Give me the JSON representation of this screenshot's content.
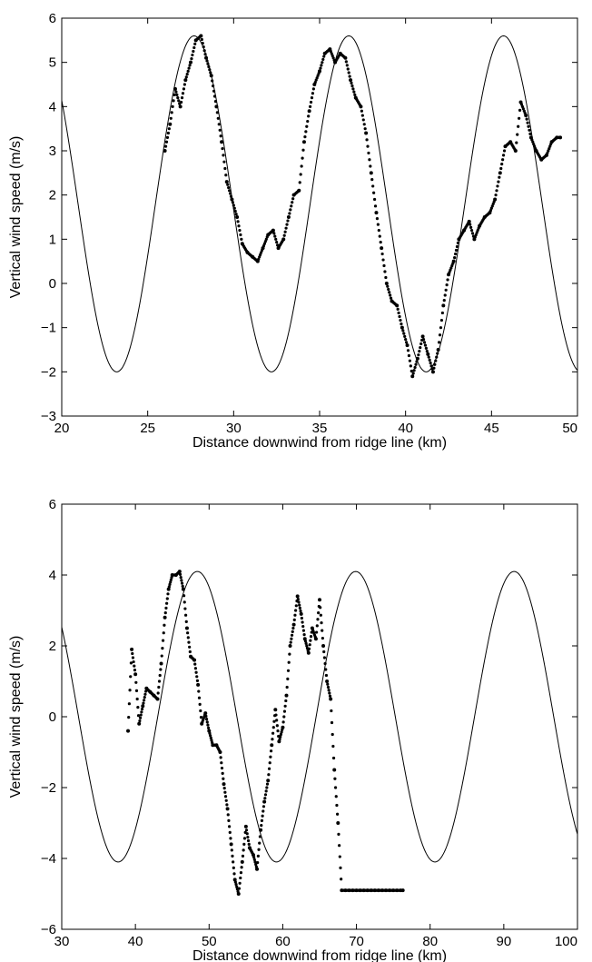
{
  "chart_data": [
    {
      "type": "scatter",
      "xlabel": "Distance downwind from ridge line (km)",
      "ylabel": "Vertical wind speed (m/s)",
      "xlim": [
        20,
        50
      ],
      "ylim": [
        -3,
        6
      ],
      "xticks": [
        20,
        25,
        30,
        35,
        40,
        45,
        50
      ],
      "yticks": [
        -3,
        -2,
        -1,
        0,
        1,
        2,
        3,
        4,
        5,
        6
      ],
      "model_curve": {
        "kind": "sinusoid",
        "amplitude": 3.8,
        "offset": 1.8,
        "wavelength_km": 9.0,
        "peak_x": 27.7
      },
      "series": [
        {
          "style": "points",
          "x": [
            26.0,
            26.3,
            26.6,
            26.9,
            27.2,
            27.5,
            27.8,
            28.1,
            28.4,
            28.7,
            29.0,
            29.3,
            29.6,
            29.9,
            30.2,
            30.5,
            30.8,
            31.1,
            31.4,
            31.7,
            32.0,
            32.3,
            32.6,
            32.9,
            33.2,
            33.5,
            33.8,
            34.1,
            34.4,
            34.7,
            35.0,
            35.3,
            35.6,
            35.9,
            36.2,
            36.5,
            36.8,
            37.1,
            37.4,
            37.7,
            38.0,
            38.3,
            38.6,
            38.9,
            39.2,
            39.5,
            39.8,
            40.1,
            40.4,
            40.7,
            41.0,
            41.3,
            41.6,
            41.9,
            42.2,
            42.5,
            42.8,
            43.1,
            43.4,
            43.7,
            44.0,
            44.3,
            44.6,
            44.9,
            45.2,
            45.5,
            45.8,
            46.1,
            46.4,
            46.7,
            47.0,
            47.3,
            47.6,
            47.9,
            48.2,
            48.5,
            48.8,
            49.0
          ],
          "y": [
            3.0,
            3.6,
            4.4,
            4.0,
            4.6,
            5.0,
            5.5,
            5.6,
            5.1,
            4.7,
            4.0,
            3.2,
            2.3,
            1.9,
            1.5,
            0.9,
            0.7,
            0.6,
            0.5,
            0.8,
            1.1,
            1.2,
            0.8,
            1.0,
            1.5,
            2.0,
            2.1,
            3.2,
            3.9,
            4.5,
            4.8,
            5.2,
            5.3,
            5.0,
            5.2,
            5.1,
            4.6,
            4.2,
            4.0,
            3.4,
            2.5,
            1.6,
            0.8,
            0.0,
            -0.4,
            -0.5,
            -1.0,
            -1.4,
            -2.1,
            -1.7,
            -1.2,
            -1.6,
            -2.0,
            -1.5,
            -0.5,
            0.2,
            0.5,
            1.0,
            1.2,
            1.4,
            1.0,
            1.3,
            1.5,
            1.6,
            1.9,
            2.5,
            3.1,
            3.2,
            3.0,
            4.1,
            3.8,
            3.3,
            3.0,
            2.8,
            2.9,
            3.2,
            3.3,
            3.3
          ]
        }
      ]
    },
    {
      "type": "scatter",
      "xlabel": "Distance downwind from ridge line (km)",
      "ylabel": "Vertical wind speed (m/s)",
      "xlim": [
        30,
        100
      ],
      "ylim": [
        -6,
        6
      ],
      "xticks": [
        30,
        40,
        50,
        60,
        70,
        80,
        90,
        100
      ],
      "yticks": [
        -6,
        -4,
        -2,
        0,
        2,
        4,
        6
      ],
      "model_curve": {
        "kind": "sinusoid",
        "amplitude": 4.1,
        "offset": 0.0,
        "wavelength_km": 21.5,
        "peak_x": 48.4
      },
      "series": [
        {
          "style": "points",
          "x": [
            39.0,
            39.5,
            40.0,
            40.5,
            41.0,
            41.5,
            42.0,
            42.5,
            43.0,
            43.5,
            44.0,
            44.5,
            45.0,
            45.5,
            46.0,
            46.5,
            47.0,
            47.5,
            48.0,
            48.5,
            49.0,
            49.5,
            50.0,
            50.5,
            51.0,
            51.5,
            52.0,
            52.5,
            53.0,
            53.5,
            54.0,
            54.5,
            55.0,
            55.5,
            56.0,
            56.5,
            57.0,
            57.5,
            58.0,
            58.5,
            59.0,
            59.5,
            60.0,
            60.5,
            61.0,
            61.5,
            62.0,
            62.5,
            63.0,
            63.5,
            64.0,
            64.5,
            65.0,
            65.5,
            66.0,
            66.5,
            67.0,
            67.5,
            68.0,
            68.5,
            69.0,
            69.5,
            70.0,
            70.5,
            71.0,
            71.5,
            72.0,
            72.5,
            73.0,
            73.5,
            74.0,
            74.5,
            75.0,
            75.5,
            76.0,
            76.3
          ],
          "y": [
            -0.4,
            1.9,
            1.2,
            -0.2,
            0.3,
            0.8,
            0.7,
            0.6,
            0.5,
            1.5,
            2.8,
            3.6,
            4.0,
            4.0,
            4.1,
            3.6,
            2.5,
            1.7,
            1.6,
            0.9,
            -0.2,
            0.1,
            -0.4,
            -0.8,
            -0.8,
            -1.0,
            -1.9,
            -2.6,
            -3.6,
            -4.6,
            -5.0,
            -4.1,
            -3.1,
            -3.7,
            -3.9,
            -4.3,
            -3.2,
            -2.4,
            -1.8,
            -0.8,
            0.2,
            -0.7,
            -0.3,
            0.6,
            2.0,
            2.6,
            3.4,
            2.9,
            2.2,
            1.8,
            2.5,
            2.2,
            3.3,
            2.0,
            1.0,
            0.5,
            -1.5,
            -3.0,
            -4.9,
            -4.9,
            -4.9,
            -4.9,
            -4.9,
            -4.9,
            -4.9,
            -4.9,
            -4.9,
            -4.9,
            -4.9,
            -4.9,
            -4.9,
            -4.9,
            -4.9,
            -4.9,
            -4.9,
            -4.9
          ]
        }
      ]
    }
  ]
}
